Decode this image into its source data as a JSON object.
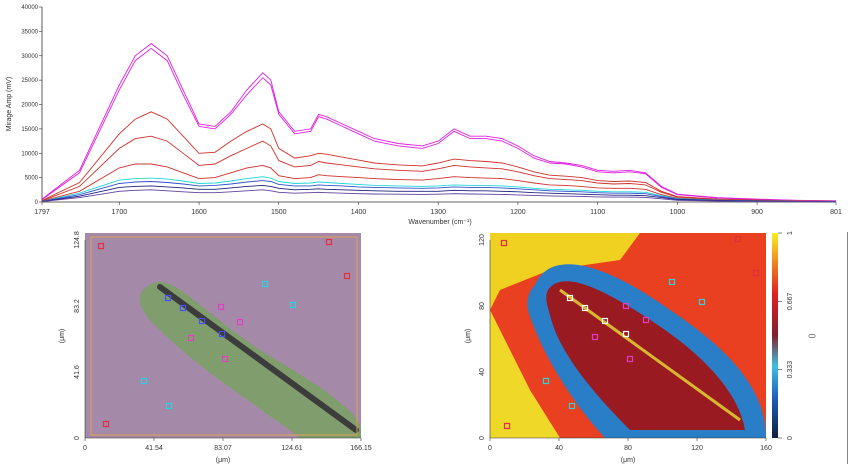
{
  "spectrum": {
    "ylabel": "Mirage Amp (mV)",
    "xlabel": "Wavenumber (cm⁻¹)",
    "yticks": [
      "0",
      "5000",
      "10000",
      "15000",
      "20000",
      "25000",
      "30000",
      "35000",
      "40000"
    ],
    "xticks": [
      "1797",
      "1700",
      "1600",
      "1500",
      "1400",
      "1300",
      "1200",
      "1100",
      "1000",
      "900",
      "801"
    ]
  },
  "optical": {
    "ylabel": "(μm)",
    "xlabel": "(μm)",
    "yticks": [
      "0",
      "41.6",
      "83.2",
      "124.8"
    ],
    "xticks": [
      "0",
      "41.54",
      "83.07",
      "124.61",
      "166.15"
    ]
  },
  "heatmap": {
    "ylabel": "(μm)",
    "xlabel": "(μm)",
    "yticks": [
      "0",
      "40",
      "80",
      "120"
    ],
    "xticks": [
      "0",
      "40",
      "80",
      "120",
      "160"
    ],
    "colorbar_ticks": [
      "0",
      "0.333",
      "0.667",
      "1"
    ],
    "colorbar_label": "()"
  },
  "chart_data": {
    "type": "line",
    "title": "",
    "xlabel": "Wavenumber (cm⁻¹)",
    "ylabel": "Mirage Amp (mV)",
    "xlim": [
      1797,
      801
    ],
    "ylim": [
      0,
      40000
    ],
    "x": [
      1797,
      1750,
      1700,
      1680,
      1660,
      1640,
      1620,
      1600,
      1580,
      1560,
      1540,
      1520,
      1510,
      1500,
      1480,
      1460,
      1450,
      1440,
      1420,
      1400,
      1380,
      1350,
      1320,
      1300,
      1280,
      1260,
      1240,
      1220,
      1200,
      1180,
      1160,
      1140,
      1120,
      1100,
      1080,
      1060,
      1040,
      1020,
      1000,
      950,
      900,
      850,
      801
    ],
    "series": [
      {
        "color": "#e020e0",
        "values": [
          500,
          6000,
          23000,
          29000,
          31500,
          29000,
          22000,
          15500,
          15000,
          18000,
          22000,
          25500,
          24000,
          18000,
          14000,
          14500,
          17500,
          17000,
          15500,
          14000,
          12500,
          11500,
          11000,
          12000,
          14500,
          13000,
          13000,
          12500,
          11000,
          9000,
          8000,
          7800,
          7200,
          6200,
          6000,
          6200,
          5800,
          3000,
          1500,
          800,
          500,
          300,
          200
        ]
      },
      {
        "color": "#e020e0",
        "values": [
          600,
          6500,
          24000,
          30000,
          32500,
          30000,
          23000,
          16000,
          15500,
          18500,
          23000,
          26500,
          25000,
          18500,
          14500,
          15000,
          18000,
          17500,
          16000,
          14500,
          13000,
          12000,
          11500,
          12500,
          15000,
          13500,
          13500,
          13000,
          11500,
          9500,
          8300,
          8000,
          7500,
          6500,
          6300,
          6500,
          6000,
          3200,
          1600,
          900,
          600,
          350,
          250
        ]
      },
      {
        "color": "#d0302a",
        "values": [
          300,
          4000,
          14000,
          17000,
          18500,
          17000,
          13500,
          10000,
          10200,
          12500,
          14500,
          16000,
          15000,
          11000,
          9000,
          9500,
          10000,
          9800,
          9200,
          8600,
          8000,
          7600,
          7400,
          8000,
          8800,
          8500,
          8300,
          8000,
          7200,
          6200,
          5500,
          5300,
          5000,
          4400,
          4200,
          4300,
          4000,
          2200,
          1100,
          600,
          400,
          250,
          150
        ]
      },
      {
        "color": "#d0302a",
        "values": [
          250,
          3200,
          11000,
          13000,
          13500,
          12500,
          10000,
          7500,
          7800,
          9500,
          11000,
          12500,
          11500,
          8500,
          7200,
          7500,
          8300,
          8000,
          7600,
          7200,
          6800,
          6500,
          6300,
          6800,
          7500,
          7200,
          7000,
          6800,
          6200,
          5400,
          4800,
          4600,
          4400,
          3900,
          3700,
          3800,
          3500,
          2000,
          1000,
          500,
          350,
          200,
          120
        ]
      },
      {
        "color": "#d0302a",
        "values": [
          200,
          2200,
          7000,
          7800,
          7800,
          7200,
          6000,
          4800,
          5000,
          6000,
          7000,
          7500,
          7000,
          5400,
          4800,
          5000,
          5600,
          5400,
          5200,
          5000,
          4800,
          4600,
          4500,
          4800,
          5200,
          5000,
          4900,
          4800,
          4400,
          3900,
          3500,
          3400,
          3200,
          2900,
          2800,
          2800,
          2600,
          1500,
          800,
          400,
          300,
          150,
          100
        ]
      },
      {
        "color": "#20d8d8",
        "values": [
          150,
          1800,
          4500,
          4800,
          4900,
          4700,
          4300,
          3800,
          3900,
          4300,
          4800,
          5200,
          4900,
          4200,
          3800,
          3900,
          4100,
          4000,
          3800,
          3600,
          3400,
          3300,
          3200,
          3300,
          3500,
          3400,
          3400,
          3300,
          3100,
          2800,
          2600,
          2500,
          2400,
          2200,
          2100,
          2100,
          2000,
          1300,
          700,
          400,
          250,
          150,
          100
        ]
      },
      {
        "color": "#3050d0",
        "values": [
          120,
          1500,
          3800,
          4100,
          4200,
          4000,
          3700,
          3300,
          3400,
          3700,
          4100,
          4400,
          4200,
          3600,
          3300,
          3300,
          3500,
          3400,
          3300,
          3100,
          3000,
          2900,
          2800,
          2900,
          3100,
          3000,
          3000,
          2900,
          2700,
          2500,
          2300,
          2200,
          2100,
          1900,
          1800,
          1800,
          1700,
          1100,
          600,
          350,
          200,
          120,
          80
        ]
      },
      {
        "color": "#202080",
        "values": [
          100,
          1200,
          3000,
          3200,
          3300,
          3100,
          2900,
          2600,
          2600,
          2900,
          3200,
          3400,
          3200,
          2800,
          2500,
          2600,
          2700,
          2600,
          2500,
          2400,
          2300,
          2200,
          2200,
          2200,
          2400,
          2300,
          2300,
          2200,
          2100,
          1900,
          1800,
          1700,
          1600,
          1500,
          1400,
          1400,
          1300,
          900,
          500,
          300,
          180,
          100,
          70
        ]
      },
      {
        "color": "#6040a0",
        "values": [
          80,
          900,
          2200,
          2400,
          2500,
          2300,
          2100,
          1900,
          1900,
          2100,
          2300,
          2500,
          2300,
          2000,
          1800,
          1900,
          2000,
          1900,
          1800,
          1700,
          1650,
          1600,
          1550,
          1600,
          1700,
          1650,
          1600,
          1550,
          1450,
          1350,
          1250,
          1200,
          1150,
          1050,
          1000,
          1000,
          950,
          650,
          350,
          200,
          120,
          80,
          50
        ]
      }
    ]
  }
}
